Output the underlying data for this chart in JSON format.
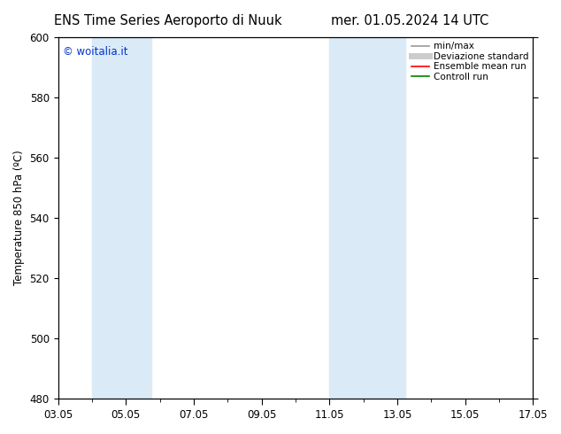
{
  "title_left": "ENS Time Series Aeroporto di Nuuk",
  "title_right": "mer. 01.05.2024 14 UTC",
  "ylabel": "Temperature 850 hPa (ºC)",
  "ylim": [
    480,
    600
  ],
  "yticks": [
    480,
    500,
    520,
    540,
    560,
    580,
    600
  ],
  "xtick_labels": [
    "03.05",
    "05.05",
    "07.05",
    "09.05",
    "11.05",
    "13.05",
    "15.05",
    "17.05"
  ],
  "xtick_positions": [
    3,
    5,
    7,
    9,
    11,
    13,
    15,
    17
  ],
  "shaded_bands": [
    {
      "x_start": 4.0,
      "x_end": 5.75
    },
    {
      "x_start": 11.0,
      "x_end": 13.25
    }
  ],
  "shaded_color": "#daeaf7",
  "bg_color": "#ffffff",
  "watermark_text": "© woitalia.it",
  "watermark_color": "#0033cc",
  "legend_items": [
    {
      "label": "min/max",
      "color": "#999999",
      "lw": 1.2,
      "style": "-"
    },
    {
      "label": "Deviazione standard",
      "color": "#cccccc",
      "lw": 5,
      "style": "-"
    },
    {
      "label": "Ensemble mean run",
      "color": "#ff0000",
      "lw": 1.2,
      "style": "-"
    },
    {
      "label": "Controll run",
      "color": "#008000",
      "lw": 1.2,
      "style": "-"
    }
  ],
  "title_fontsize": 10.5,
  "tick_label_fontsize": 8.5,
  "ylabel_fontsize": 8.5,
  "legend_fontsize": 7.5,
  "watermark_fontsize": 8.5
}
